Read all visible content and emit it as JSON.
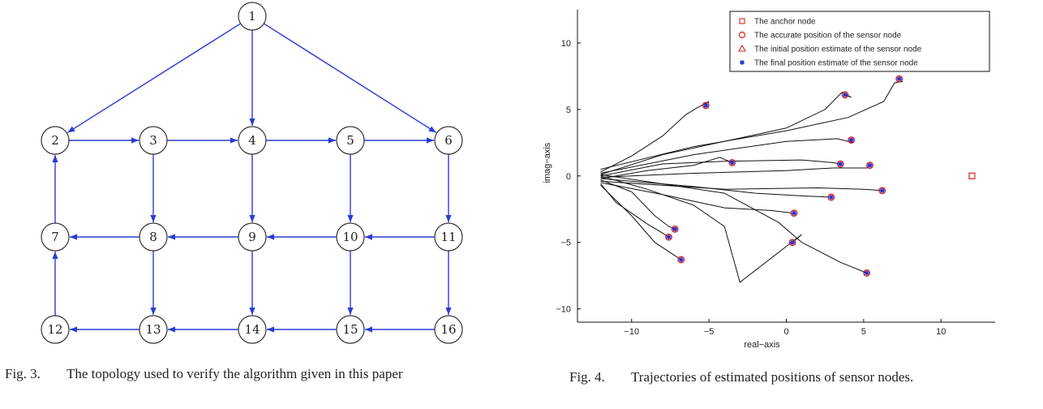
{
  "fig3": {
    "number": "Fig. 3.",
    "caption": "The topology used to verify the algorithm given in this paper",
    "nodes": [
      "1",
      "2",
      "3",
      "4",
      "5",
      "6",
      "7",
      "8",
      "9",
      "10",
      "11",
      "12",
      "13",
      "14",
      "15",
      "16"
    ],
    "edges": [
      [
        1,
        2
      ],
      [
        1,
        4
      ],
      [
        1,
        6
      ],
      [
        2,
        3
      ],
      [
        3,
        4
      ],
      [
        4,
        5
      ],
      [
        5,
        6
      ],
      [
        3,
        8
      ],
      [
        4,
        9
      ],
      [
        5,
        10
      ],
      [
        6,
        11
      ],
      [
        7,
        2
      ],
      [
        8,
        7
      ],
      [
        9,
        8
      ],
      [
        10,
        9
      ],
      [
        11,
        10
      ],
      [
        8,
        13
      ],
      [
        9,
        14
      ],
      [
        10,
        15
      ],
      [
        11,
        16
      ],
      [
        12,
        7
      ],
      [
        13,
        12
      ],
      [
        14,
        13
      ],
      [
        15,
        14
      ],
      [
        16,
        15
      ]
    ],
    "edge_color": "#2a3bd6"
  },
  "fig4": {
    "number": "Fig. 4.",
    "caption": "Trajectories of estimated positions of sensor nodes.",
    "chart_data": {
      "type": "scatter",
      "xlabel": "real−axis",
      "ylabel": "imag−axis",
      "xlim": [
        -13.5,
        13.5
      ],
      "ylim": [
        -11,
        12.5
      ],
      "xticks": [
        -10,
        -5,
        0,
        5,
        10
      ],
      "xtick_labels": [
        "−10",
        "−5",
        "0",
        "5",
        "10"
      ],
      "yticks": [
        -10,
        -5,
        0,
        5,
        10
      ],
      "ytick_labels": [
        "−10",
        "−5",
        "0",
        "5",
        "10"
      ],
      "legend_position": "top-right",
      "legend": [
        {
          "marker": "square",
          "color": "#e02020",
          "label": "The anchor node"
        },
        {
          "marker": "circle",
          "color": "#e02020",
          "label": "The accurate position of the sensor node"
        },
        {
          "marker": "triangle",
          "color": "#e02020",
          "label": "The initial position estimate of the sensor node"
        },
        {
          "marker": "star",
          "color": "#2030d0",
          "label": "The final position estimate of the sensor node"
        }
      ],
      "anchor": [
        [
          12,
          0
        ]
      ],
      "sensors": [
        [
          -5.2,
          5.3
        ],
        [
          3.8,
          6.1
        ],
        [
          7.3,
          7.3
        ],
        [
          -3.5,
          1.0
        ],
        [
          4.2,
          2.7
        ],
        [
          3.5,
          0.9
        ],
        [
          5.4,
          0.8
        ],
        [
          6.2,
          -1.1
        ],
        [
          2.9,
          -1.6
        ],
        [
          0.5,
          -2.8
        ],
        [
          -7.2,
          -4.0
        ],
        [
          -7.6,
          -4.6
        ],
        [
          0.4,
          -5.0
        ],
        [
          -6.8,
          -6.3
        ],
        [
          5.2,
          -7.3
        ]
      ],
      "trajectories": [
        [
          [
            -12,
            0.3
          ],
          [
            -10,
            1.5
          ],
          [
            -8,
            3.0
          ],
          [
            -6.5,
            4.6
          ],
          [
            -5.8,
            5.1
          ],
          [
            -5.0,
            5.6
          ],
          [
            -5.2,
            5.3
          ]
        ],
        [
          [
            -12,
            0.1
          ],
          [
            -8,
            1.6
          ],
          [
            -4,
            2.6
          ],
          [
            0,
            3.6
          ],
          [
            2.5,
            5.0
          ],
          [
            3.6,
            6.3
          ],
          [
            4.2,
            5.9
          ],
          [
            3.8,
            6.1
          ]
        ],
        [
          [
            -12,
            0.5
          ],
          [
            -6,
            2.2
          ],
          [
            0,
            3.4
          ],
          [
            4,
            4.4
          ],
          [
            6.3,
            5.6
          ],
          [
            7.0,
            7.0
          ],
          [
            7.5,
            7.1
          ],
          [
            7.3,
            7.3
          ]
        ],
        [
          [
            -12,
            -0.2
          ],
          [
            -9,
            0.4
          ],
          [
            -6,
            0.8
          ],
          [
            -4.3,
            1.4
          ],
          [
            -3.5,
            1.0
          ]
        ],
        [
          [
            -12,
            0.2
          ],
          [
            -6,
            1.6
          ],
          [
            0,
            2.6
          ],
          [
            3.3,
            2.8
          ],
          [
            4.3,
            2.5
          ],
          [
            4.2,
            2.7
          ]
        ],
        [
          [
            -12,
            0.0
          ],
          [
            -8,
            0.9
          ],
          [
            -4,
            1.1
          ],
          [
            1,
            1.2
          ],
          [
            3.0,
            1.0
          ],
          [
            3.5,
            0.9
          ]
        ],
        [
          [
            -12,
            -0.1
          ],
          [
            -6,
            0.2
          ],
          [
            0,
            0.4
          ],
          [
            3,
            0.6
          ],
          [
            5.2,
            0.6
          ],
          [
            5.4,
            0.8
          ]
        ],
        [
          [
            -12,
            -0.4
          ],
          [
            -4,
            -1.0
          ],
          [
            2,
            -0.9
          ],
          [
            5,
            -1.0
          ],
          [
            6.2,
            -1.1
          ]
        ],
        [
          [
            -12,
            -0.2
          ],
          [
            -6,
            -0.8
          ],
          [
            -2,
            -1.3
          ],
          [
            1,
            -1.5
          ],
          [
            2.9,
            -1.6
          ]
        ],
        [
          [
            -12,
            -0.5
          ],
          [
            -8,
            -1.4
          ],
          [
            -4,
            -2.4
          ],
          [
            -1,
            -2.6
          ],
          [
            0.5,
            -2.8
          ]
        ],
        [
          [
            -12,
            -0.3
          ],
          [
            -10,
            -1.2
          ],
          [
            -8.5,
            -3.0
          ],
          [
            -7.6,
            -3.8
          ],
          [
            -7.2,
            -4.0
          ]
        ],
        [
          [
            -12,
            -0.6
          ],
          [
            -11,
            -2.0
          ],
          [
            -9,
            -3.6
          ],
          [
            -8,
            -4.3
          ],
          [
            -7.6,
            -4.6
          ]
        ],
        [
          [
            -12,
            0.0
          ],
          [
            -9,
            -1.0
          ],
          [
            -6,
            -2.2
          ],
          [
            -4,
            -3.8
          ],
          [
            -3,
            -8.0
          ],
          [
            1,
            -4.4
          ],
          [
            0.4,
            -5.0
          ]
        ],
        [
          [
            -12,
            -0.7
          ],
          [
            -10,
            -3.0
          ],
          [
            -8.5,
            -5.0
          ],
          [
            -7.2,
            -6.0
          ],
          [
            -6.8,
            -6.3
          ]
        ],
        [
          [
            -12,
            0.1
          ],
          [
            -8,
            -0.6
          ],
          [
            -4,
            -1.3
          ],
          [
            -0.5,
            -3.5
          ],
          [
            1.0,
            -5.0
          ],
          [
            3.5,
            -6.5
          ],
          [
            5.2,
            -7.3
          ]
        ]
      ]
    }
  }
}
